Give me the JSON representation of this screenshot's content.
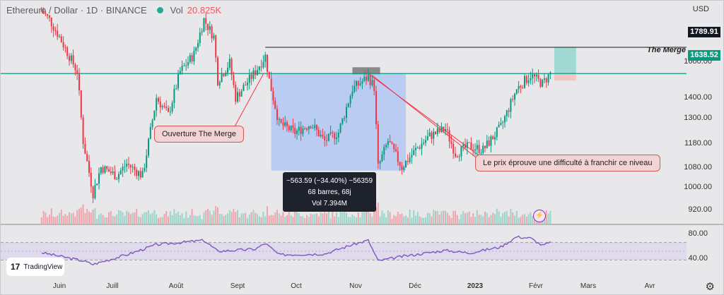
{
  "header": {
    "symbol": "Ethereum / Dollar · 1D · BINANCE",
    "vol_label": "Vol",
    "vol_value": "20.825K",
    "currency": "USD"
  },
  "price_axis": {
    "ticks": [
      "1600.00",
      "1400.00",
      "1300.00",
      "1180.00",
      "1080.00",
      "1000.00",
      "920.00"
    ],
    "resistance_tag": "1789.91",
    "current_tag": "1638.52"
  },
  "rsi_axis": {
    "ticks": [
      "80.00",
      "40.00"
    ]
  },
  "time_axis": [
    "Juin",
    "Juill",
    "Août",
    "Sept",
    "Oct",
    "Nov",
    "Déc",
    "2023",
    "Févr",
    "Mars",
    "Avr"
  ],
  "annotations": {
    "merge_line_label": "The Merge",
    "callout_left": "Ouverture The Merge",
    "callout_right": "Le prix éprouve une difficulté à franchir ce niveau"
  },
  "measure": {
    "change": "−563.59 (−34.40%) −56359",
    "bars": "68 barres, 68j",
    "volume": "Vol 7.394M"
  },
  "branding": {
    "name": "TradingView"
  },
  "colors": {
    "up": "#089981",
    "down": "#f23645",
    "rsi": "#7e57c2",
    "merge_line": "#089981",
    "resistance_line": "#131722",
    "measure_zone": "#b3c7f5",
    "target_zone": "#9fd9d1",
    "stop_zone": "#f3c6c6"
  },
  "chart_data": {
    "type": "candlestick",
    "symbol": "Ethereum / Dollar",
    "timeframe": "1D",
    "exchange": "BINANCE",
    "y_ticks": [
      920,
      1000,
      1080,
      1180,
      1300,
      1400,
      1600
    ],
    "ylim": [
      880,
      2050
    ],
    "x_ticks": [
      "Juin",
      "Juill",
      "Août",
      "Sept",
      "Oct",
      "Nov",
      "Déc",
      "2023",
      "Févr",
      "Mars",
      "Avr"
    ],
    "levels": [
      {
        "label": "The Merge",
        "value": 1638.52
      },
      {
        "label": "1789.91",
        "value": 1789.91
      }
    ],
    "price_path": [
      [
        "2022-05-23",
        2000
      ],
      [
        "2022-05-27",
        1950
      ],
      [
        "2022-06-01",
        1850
      ],
      [
        "2022-06-10",
        1650
      ],
      [
        "2022-06-13",
        1250
      ],
      [
        "2022-06-18",
        950
      ],
      [
        "2022-06-22",
        1100
      ],
      [
        "2022-06-30",
        1050
      ],
      [
        "2022-07-05",
        1120
      ],
      [
        "2022-07-13",
        1050
      ],
      [
        "2022-07-20",
        1500
      ],
      [
        "2022-07-26",
        1400
      ],
      [
        "2022-08-01",
        1650
      ],
      [
        "2022-08-08",
        1750
      ],
      [
        "2022-08-13",
        1950
      ],
      [
        "2022-08-18",
        1850
      ],
      [
        "2022-08-20",
        1600
      ],
      [
        "2022-08-26",
        1700
      ],
      [
        "2022-08-29",
        1500
      ],
      [
        "2022-09-08",
        1650
      ],
      [
        "2022-09-13",
        1740
      ],
      [
        "2022-09-15",
        1600
      ],
      [
        "2022-09-20",
        1350
      ],
      [
        "2022-09-28",
        1300
      ],
      [
        "2022-10-06",
        1350
      ],
      [
        "2022-10-13",
        1250
      ],
      [
        "2022-10-20",
        1300
      ],
      [
        "2022-10-27",
        1550
      ],
      [
        "2022-11-04",
        1620
      ],
      [
        "2022-11-07",
        1560
      ],
      [
        "2022-11-09",
        1100
      ],
      [
        "2022-11-14",
        1250
      ],
      [
        "2022-11-21",
        1100
      ],
      [
        "2022-11-28",
        1200
      ],
      [
        "2022-12-05",
        1280
      ],
      [
        "2022-12-13",
        1320
      ],
      [
        "2022-12-18",
        1180
      ],
      [
        "2022-12-25",
        1220
      ],
      [
        "2023-01-01",
        1200
      ],
      [
        "2023-01-10",
        1330
      ],
      [
        "2023-01-18",
        1550
      ],
      [
        "2023-01-25",
        1630
      ],
      [
        "2023-01-31",
        1580
      ],
      [
        "2023-02-04",
        1640
      ]
    ],
    "rsi_ticks": [
      40,
      80
    ],
    "rsi_path": [
      [
        "2022-05-23",
        47
      ],
      [
        "2022-06-13",
        28
      ],
      [
        "2022-06-18",
        20
      ],
      [
        "2022-07-05",
        42
      ],
      [
        "2022-07-20",
        65
      ],
      [
        "2022-08-01",
        70
      ],
      [
        "2022-08-13",
        75
      ],
      [
        "2022-08-20",
        50
      ],
      [
        "2022-09-08",
        55
      ],
      [
        "2022-09-13",
        68
      ],
      [
        "2022-09-20",
        42
      ],
      [
        "2022-10-13",
        44
      ],
      [
        "2022-10-27",
        65
      ],
      [
        "2022-11-04",
        75
      ],
      [
        "2022-11-09",
        28
      ],
      [
        "2022-11-21",
        38
      ],
      [
        "2022-12-13",
        52
      ],
      [
        "2022-12-25",
        46
      ],
      [
        "2023-01-10",
        60
      ],
      [
        "2023-01-18",
        83
      ],
      [
        "2023-01-25",
        80
      ],
      [
        "2023-01-31",
        63
      ],
      [
        "2023-02-04",
        70
      ]
    ],
    "measure": {
      "change": -563.59,
      "change_pct": -34.4,
      "bars": 68,
      "volume": "7.394M"
    }
  }
}
